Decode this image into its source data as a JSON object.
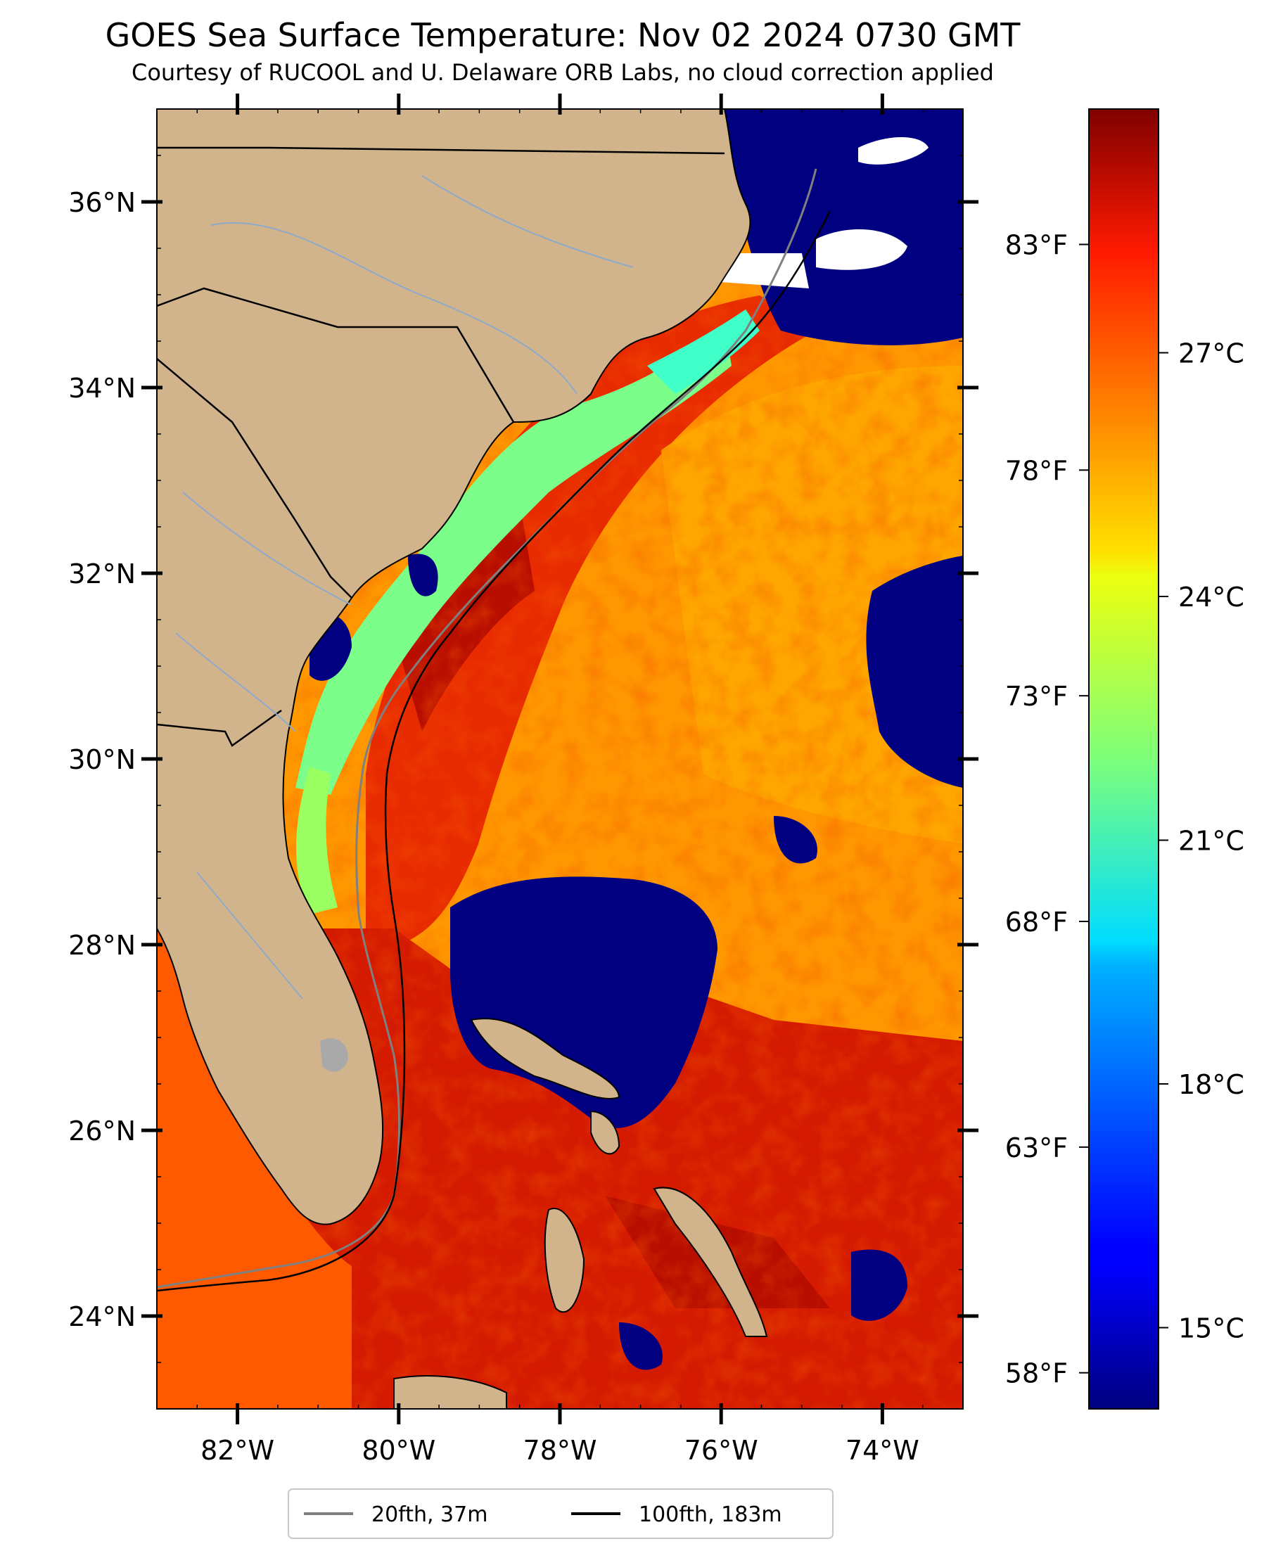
{
  "title": "GOES Sea Surface Temperature: Nov 02 2024 0730 GMT",
  "subtitle": "Courtesy of RUCOOL and U. Delaware ORB Labs, no cloud correction applied",
  "map": {
    "lon_range": [
      -83,
      -73
    ],
    "lat_range": [
      23,
      37
    ],
    "lat_ticks": [
      "36°N",
      "34°N",
      "32°N",
      "30°N",
      "28°N",
      "26°N",
      "24°N"
    ],
    "lat_values": [
      36,
      34,
      32,
      30,
      28,
      26,
      24
    ],
    "lon_ticks": [
      "82°W",
      "80°W",
      "78°W",
      "76°W",
      "74°W"
    ],
    "lon_values": [
      -82,
      -80,
      -78,
      -76,
      -74
    ],
    "colors": {
      "land": "#D2B48C",
      "cloud": "#000080",
      "no_data": "#FFFFFF",
      "river": "#8FA9C9",
      "contour_20fth": "#808080",
      "contour_100fth": "#000000"
    }
  },
  "colorbar": {
    "colormap": "jet",
    "celsius_range": [
      14,
      30
    ],
    "celsius_labels": [
      "27°C",
      "24°C",
      "21°C",
      "18°C",
      "15°C"
    ],
    "celsius_values": [
      27,
      24,
      21,
      18,
      15
    ],
    "fahrenheit_labels": [
      "83°F",
      "78°F",
      "73°F",
      "68°F",
      "63°F",
      "58°F"
    ],
    "fahrenheit_values": [
      83,
      78,
      73,
      68,
      63,
      58
    ]
  },
  "legend": {
    "items": [
      {
        "label": "20fth, 37m",
        "color": "#808080"
      },
      {
        "label": "100fth, 183m",
        "color": "#000000"
      }
    ]
  }
}
